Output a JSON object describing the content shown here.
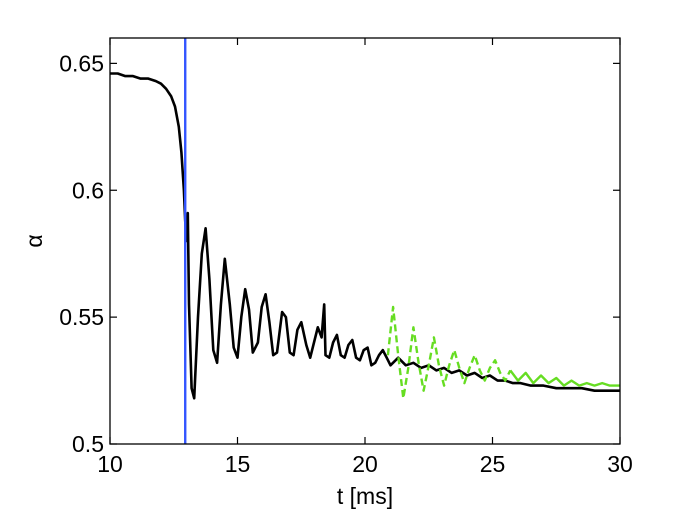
{
  "chart_data": {
    "type": "line",
    "title": "",
    "xlabel": "t [ms]",
    "ylabel": "α",
    "xlim": [
      10,
      30
    ],
    "ylim": [
      0.5,
      0.66
    ],
    "xticks": [
      10,
      15,
      20,
      25,
      30
    ],
    "xtick_labels": [
      "10",
      "15",
      "20",
      "25",
      "30"
    ],
    "yticks": [
      0.5,
      0.55,
      0.6,
      0.65
    ],
    "ytick_labels": [
      "0.5",
      "0.55",
      "0.6",
      "0.65"
    ],
    "grid": false,
    "vertical_line": {
      "x": 12.95,
      "color": "#3355ff"
    },
    "series": [
      {
        "color": "#000000",
        "style": "solid",
        "x": [
          10.0,
          10.3,
          10.6,
          10.9,
          11.2,
          11.5,
          11.8,
          12.0,
          12.2,
          12.4,
          12.55,
          12.7,
          12.8,
          12.9,
          12.95,
          13.0,
          13.05,
          13.1,
          13.2,
          13.3,
          13.45,
          13.6,
          13.75,
          13.9,
          14.05,
          14.2,
          14.35,
          14.5,
          14.7,
          14.85,
          15.0,
          15.15,
          15.3,
          15.45,
          15.6,
          15.8,
          15.95,
          16.1,
          16.25,
          16.4,
          16.55,
          16.75,
          16.9,
          17.05,
          17.2,
          17.35,
          17.5,
          17.7,
          17.85,
          18.0,
          18.15,
          18.3,
          18.4,
          18.45,
          18.6,
          18.75,
          18.9,
          19.05,
          19.2,
          19.35,
          19.5,
          19.65,
          19.8,
          19.95,
          20.1,
          20.25,
          20.4,
          20.55,
          20.7,
          20.85,
          21.0,
          21.3,
          21.6,
          21.9,
          22.2,
          22.5,
          22.8,
          23.1,
          23.4,
          23.7,
          24.0,
          24.3,
          24.6,
          24.9,
          25.2,
          25.5,
          25.8,
          26.1,
          26.5,
          27.0,
          27.5,
          28.0,
          28.5,
          29.0,
          29.5,
          30.0
        ],
        "y": [
          0.646,
          0.646,
          0.645,
          0.645,
          0.644,
          0.644,
          0.643,
          0.642,
          0.64,
          0.637,
          0.633,
          0.625,
          0.615,
          0.6,
          0.588,
          0.58,
          0.591,
          0.555,
          0.522,
          0.518,
          0.55,
          0.575,
          0.585,
          0.565,
          0.537,
          0.532,
          0.555,
          0.573,
          0.555,
          0.538,
          0.534,
          0.55,
          0.561,
          0.553,
          0.536,
          0.54,
          0.554,
          0.559,
          0.548,
          0.535,
          0.536,
          0.552,
          0.55,
          0.536,
          0.535,
          0.545,
          0.548,
          0.539,
          0.534,
          0.54,
          0.546,
          0.542,
          0.555,
          0.535,
          0.534,
          0.54,
          0.543,
          0.535,
          0.534,
          0.539,
          0.541,
          0.534,
          0.533,
          0.537,
          0.538,
          0.531,
          0.532,
          0.535,
          0.537,
          0.534,
          0.531,
          0.534,
          0.531,
          0.532,
          0.53,
          0.531,
          0.529,
          0.53,
          0.528,
          0.529,
          0.527,
          0.528,
          0.526,
          0.527,
          0.525,
          0.525,
          0.524,
          0.524,
          0.523,
          0.523,
          0.522,
          0.522,
          0.522,
          0.521,
          0.521,
          0.521
        ]
      },
      {
        "color": "#66dd22",
        "style": "dashed",
        "x": [
          20.9,
          21.1,
          21.3,
          21.5,
          21.7,
          21.9,
          22.1,
          22.3,
          22.5,
          22.7,
          22.9,
          23.1,
          23.3,
          23.5,
          23.7,
          23.9,
          24.1,
          24.3,
          24.5,
          24.7,
          24.9,
          25.1,
          25.3,
          25.5,
          25.7
        ],
        "y": [
          0.535,
          0.554,
          0.535,
          0.518,
          0.53,
          0.546,
          0.532,
          0.521,
          0.531,
          0.542,
          0.531,
          0.523,
          0.531,
          0.537,
          0.53,
          0.524,
          0.53,
          0.535,
          0.529,
          0.525,
          0.53,
          0.533,
          0.528,
          0.525,
          0.529
        ]
      },
      {
        "color": "#66dd22",
        "style": "solid",
        "x": [
          25.7,
          26.0,
          26.3,
          26.6,
          26.9,
          27.2,
          27.5,
          27.8,
          28.1,
          28.4,
          28.7,
          29.0,
          29.3,
          29.6,
          30.0
        ],
        "y": [
          0.529,
          0.525,
          0.528,
          0.524,
          0.527,
          0.524,
          0.526,
          0.523,
          0.525,
          0.523,
          0.524,
          0.523,
          0.524,
          0.523,
          0.523
        ]
      }
    ]
  }
}
